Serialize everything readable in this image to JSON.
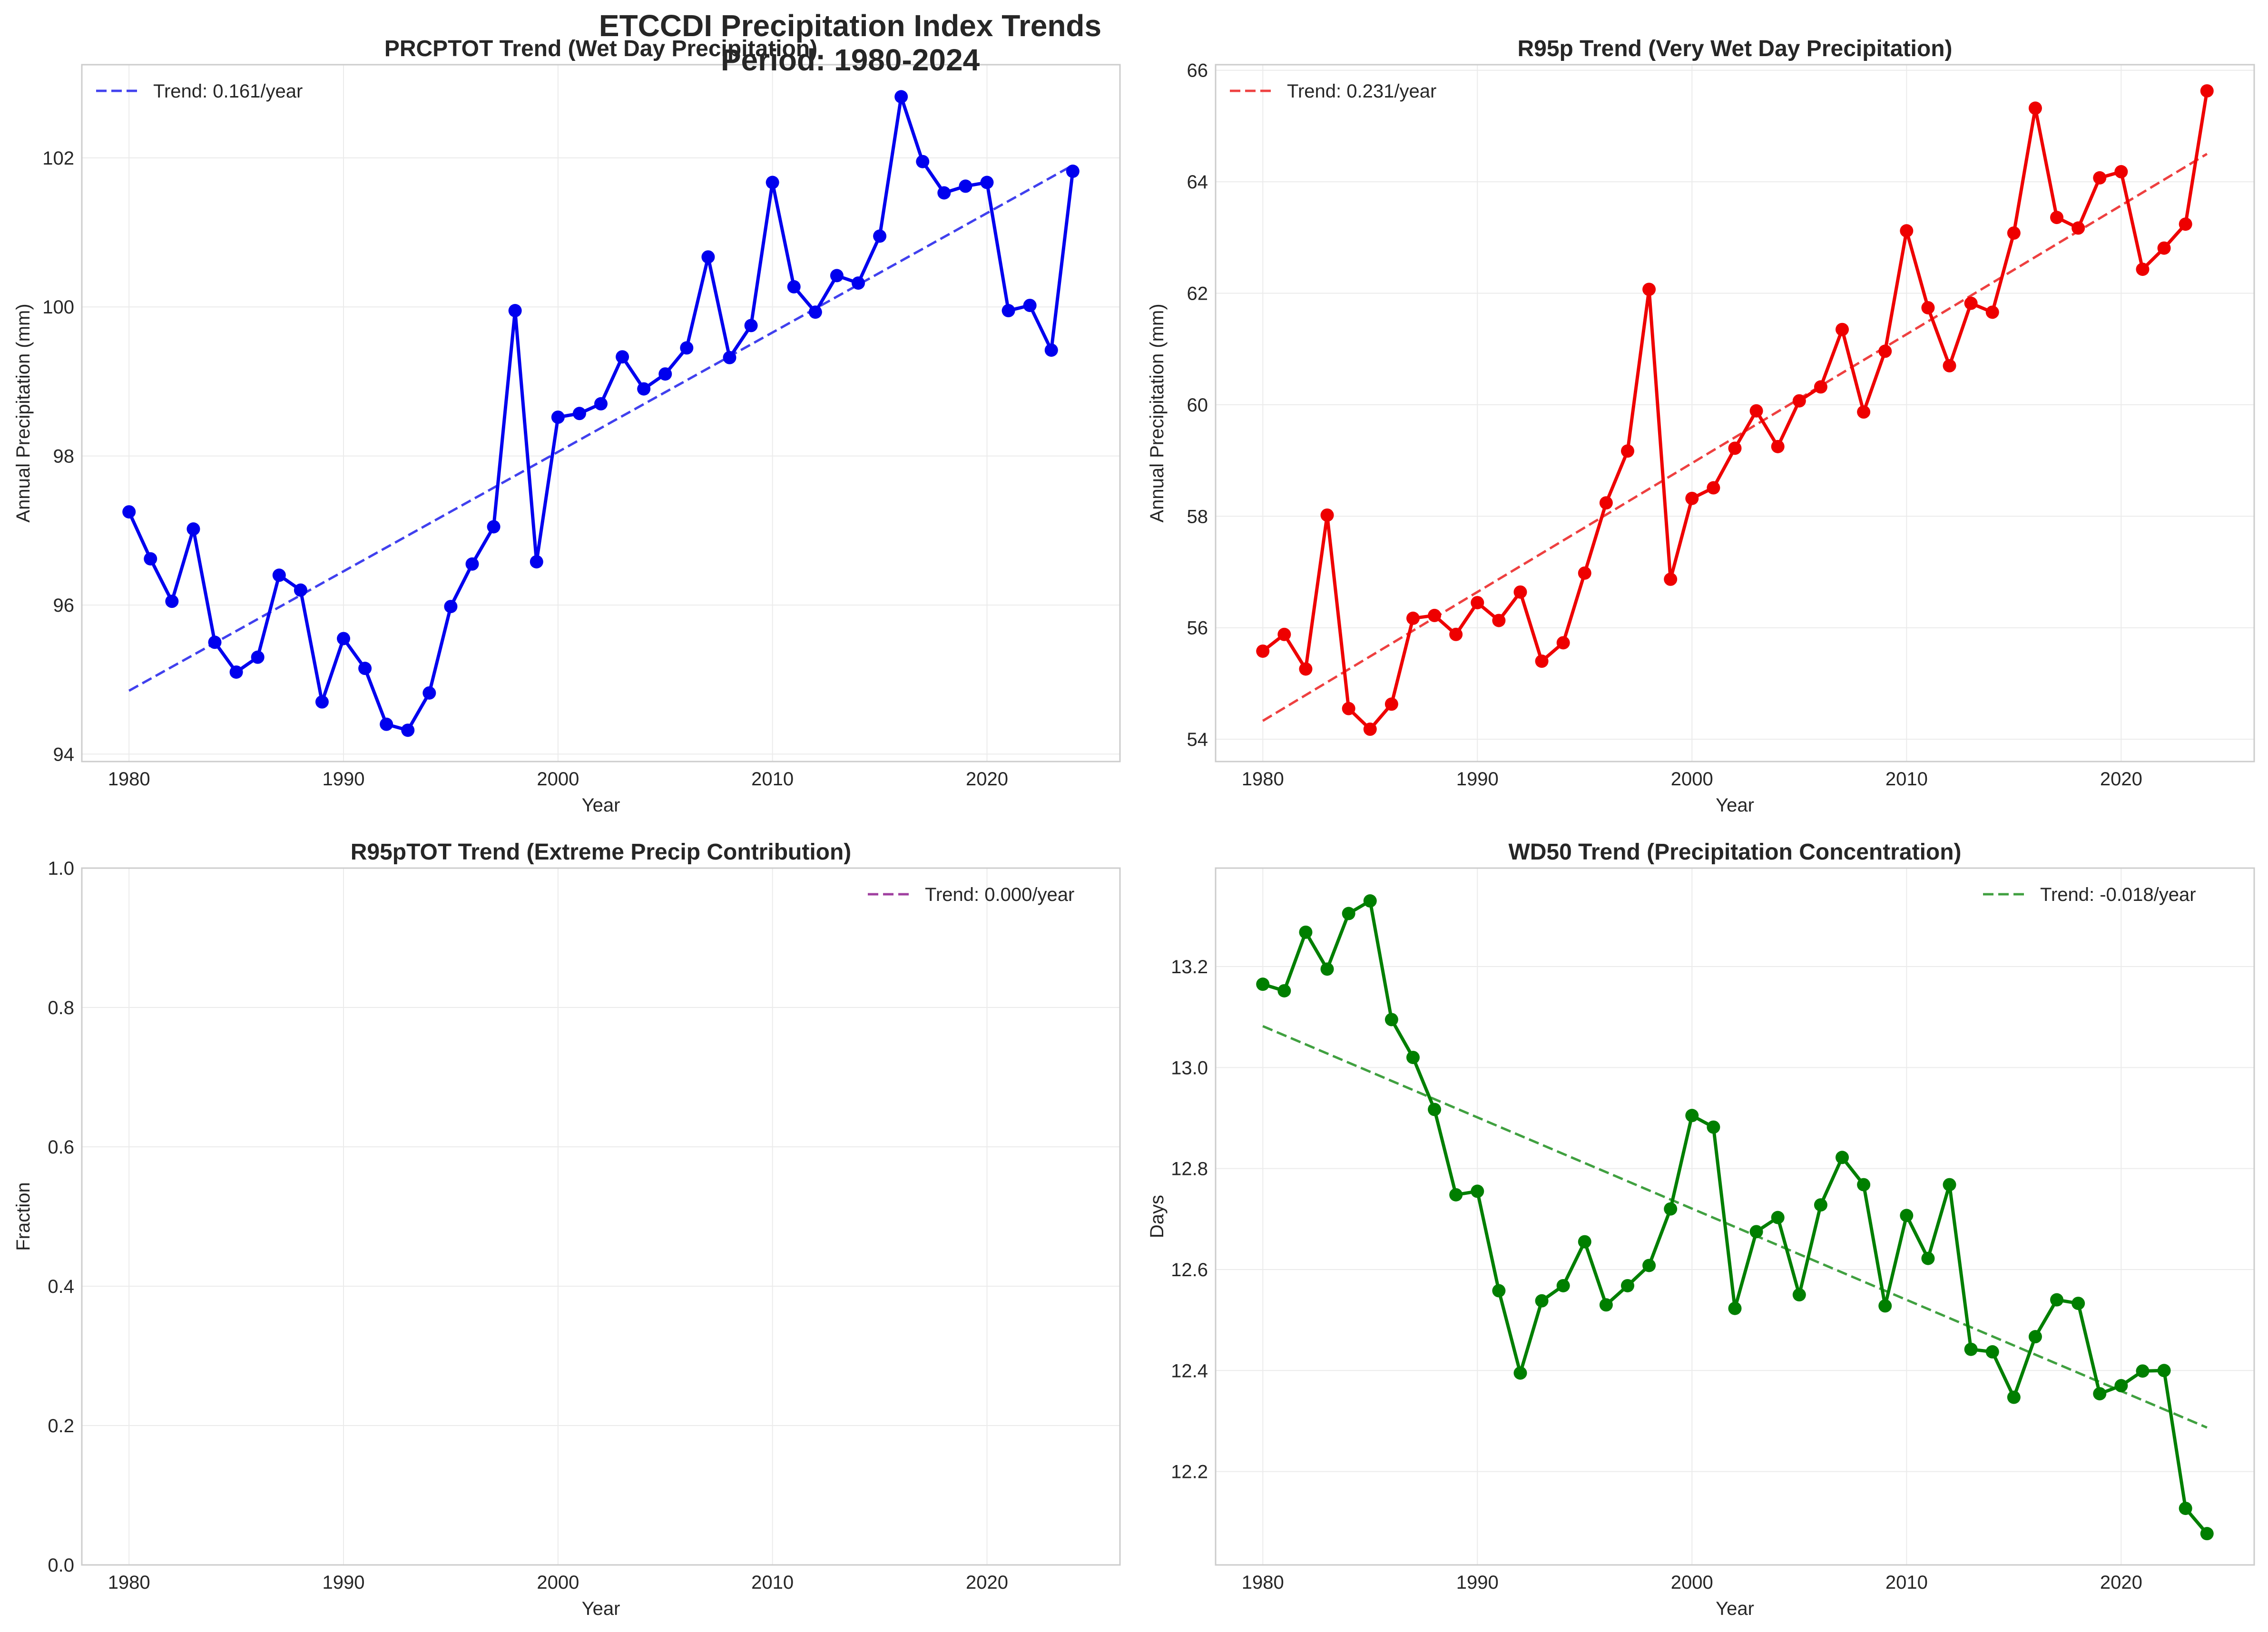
{
  "figure": {
    "title_line1": "ETCCDI Precipitation Index Trends",
    "title_line2": "Period: 1980-2024"
  },
  "chart_data": [
    {
      "type": "line",
      "title": "PRCPTOT Trend (Wet Day Precipitation)",
      "xlabel": "Year",
      "ylabel": "Annual Precipitation (mm)",
      "xlim": [
        1977.8,
        2026.2
      ],
      "ylim": [
        93.9,
        103.25
      ],
      "xticks": [
        1980,
        1990,
        2000,
        2010,
        2020
      ],
      "yticks": [
        94,
        96,
        98,
        100,
        102
      ],
      "grid": true,
      "legend_position": "upper left",
      "color": "#0000ee",
      "trend_color": "#4040ee",
      "x": [
        1980,
        1981,
        1982,
        1983,
        1984,
        1985,
        1986,
        1987,
        1988,
        1989,
        1990,
        1991,
        1992,
        1993,
        1994,
        1995,
        1996,
        1997,
        1998,
        1999,
        2000,
        2001,
        2002,
        2003,
        2004,
        2005,
        2006,
        2007,
        2008,
        2009,
        2010,
        2011,
        2012,
        2013,
        2014,
        2015,
        2016,
        2017,
        2018,
        2019,
        2020,
        2021,
        2022,
        2023,
        2024
      ],
      "values": [
        97.25,
        96.62,
        96.05,
        97.02,
        95.5,
        95.1,
        95.3,
        96.4,
        96.2,
        94.7,
        95.55,
        95.15,
        94.4,
        94.32,
        94.82,
        95.98,
        96.55,
        97.05,
        99.95,
        96.58,
        98.52,
        98.57,
        98.7,
        99.33,
        98.9,
        99.1,
        99.45,
        100.67,
        99.32,
        99.75,
        101.67,
        100.27,
        99.93,
        100.42,
        100.32,
        100.95,
        102.82,
        101.95,
        101.53,
        101.62,
        101.67,
        99.95,
        100.02,
        99.42,
        101.82
      ],
      "trend": {
        "label": "Trend: 0.161/year",
        "x": [
          1980,
          2024
        ],
        "y": [
          94.85,
          101.9
        ]
      }
    },
    {
      "type": "line",
      "title": "R95p Trend (Very Wet Day Precipitation)",
      "xlabel": "Year",
      "ylabel": "Annual Precipitation (mm)",
      "xlim": [
        1977.8,
        2026.2
      ],
      "ylim": [
        53.6,
        66.1
      ],
      "xticks": [
        1980,
        1990,
        2000,
        2010,
        2020
      ],
      "yticks": [
        54,
        56,
        58,
        60,
        62,
        64,
        66
      ],
      "grid": true,
      "legend_position": "upper left",
      "color": "#ee0000",
      "trend_color": "#ee4040",
      "x": [
        1980,
        1981,
        1982,
        1983,
        1984,
        1985,
        1986,
        1987,
        1988,
        1989,
        1990,
        1991,
        1992,
        1993,
        1994,
        1995,
        1996,
        1997,
        1998,
        1999,
        2000,
        2001,
        2002,
        2003,
        2004,
        2005,
        2006,
        2007,
        2008,
        2009,
        2010,
        2011,
        2012,
        2013,
        2014,
        2015,
        2016,
        2017,
        2018,
        2019,
        2020,
        2021,
        2022,
        2023,
        2024
      ],
      "values": [
        55.58,
        55.88,
        55.26,
        58.02,
        54.55,
        54.18,
        54.63,
        56.17,
        56.22,
        55.88,
        56.45,
        56.13,
        56.64,
        55.4,
        55.73,
        56.98,
        58.24,
        59.17,
        62.07,
        56.87,
        58.32,
        58.51,
        59.22,
        59.89,
        59.25,
        60.07,
        60.32,
        61.35,
        59.87,
        60.96,
        63.12,
        61.74,
        60.7,
        61.82,
        61.66,
        63.08,
        65.32,
        63.36,
        63.17,
        64.07,
        64.18,
        62.43,
        62.81,
        63.24,
        65.63
      ],
      "trend": {
        "label": "Trend: 0.231/year",
        "x": [
          1980,
          2024
        ],
        "y": [
          54.33,
          64.5
        ]
      }
    },
    {
      "type": "line",
      "title": "R95pTOT Trend (Extreme Precip Contribution)",
      "xlabel": "Year",
      "ylabel": "Fraction",
      "xlim": [
        1977.8,
        2026.2
      ],
      "ylim": [
        0,
        1
      ],
      "xticks": [
        1980,
        1990,
        2000,
        2010,
        2020
      ],
      "yticks": [
        0.0,
        0.2,
        0.4,
        0.6,
        0.8,
        1.0
      ],
      "grid": true,
      "legend_position": "upper right",
      "color": "#800080",
      "trend_color": "#a040a0",
      "x": [],
      "values": [],
      "trend": {
        "label": "Trend: 0.000/year",
        "x": [],
        "y": []
      }
    },
    {
      "type": "line",
      "title": "WD50 Trend (Precipitation Concentration)",
      "xlabel": "Year",
      "ylabel": "Days",
      "xlim": [
        1977.8,
        2026.2
      ],
      "ylim": [
        12.015,
        13.395
      ],
      "xticks": [
        1980,
        1990,
        2000,
        2010,
        2020
      ],
      "yticks": [
        12.2,
        12.4,
        12.6,
        12.8,
        13.0,
        13.2
      ],
      "grid": true,
      "legend_position": "upper right",
      "color": "#007f00",
      "trend_color": "#40a040",
      "x": [
        1980,
        1981,
        1982,
        1983,
        1984,
        1985,
        1986,
        1987,
        1988,
        1989,
        1990,
        1991,
        1992,
        1993,
        1994,
        1995,
        1996,
        1997,
        1998,
        1999,
        2000,
        2001,
        2002,
        2003,
        2004,
        2005,
        2006,
        2007,
        2008,
        2009,
        2010,
        2011,
        2012,
        2013,
        2014,
        2015,
        2016,
        2017,
        2018,
        2019,
        2020,
        2021,
        2022,
        2023,
        2024
      ],
      "values": [
        13.165,
        13.152,
        13.268,
        13.195,
        13.305,
        13.33,
        13.095,
        13.02,
        12.917,
        12.748,
        12.755,
        12.558,
        12.395,
        12.538,
        12.568,
        12.655,
        12.53,
        12.568,
        12.608,
        12.72,
        12.905,
        12.882,
        12.523,
        12.675,
        12.703,
        12.55,
        12.728,
        12.822,
        12.768,
        12.528,
        12.707,
        12.622,
        12.768,
        12.442,
        12.437,
        12.347,
        12.467,
        12.54,
        12.533,
        12.354,
        12.37,
        12.399,
        12.4,
        12.127,
        12.077
      ],
      "trend": {
        "label": "Trend: -0.018/year",
        "x": [
          1980,
          2024
        ],
        "y": [
          13.082,
          12.287
        ]
      }
    }
  ]
}
